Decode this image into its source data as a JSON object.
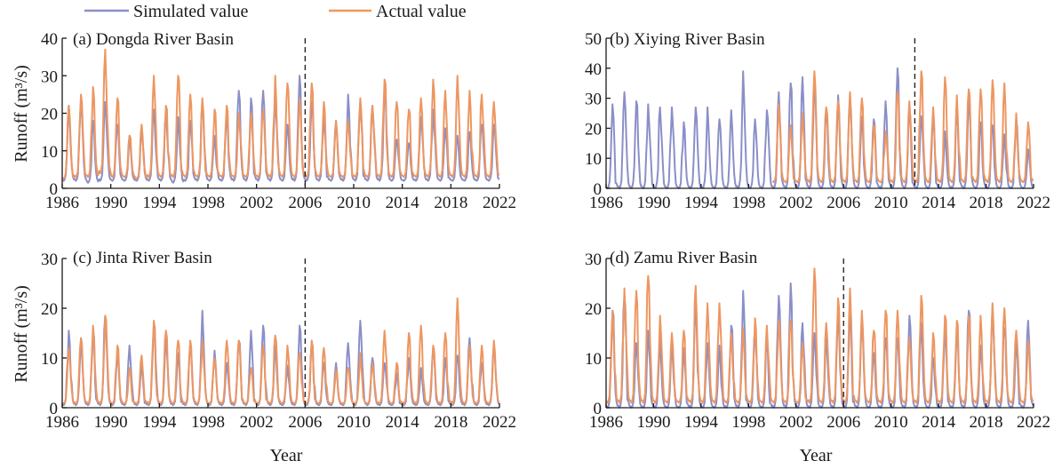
{
  "legend": {
    "simulated_label": "Simulated value",
    "actual_label": "Actual value"
  },
  "colors": {
    "simulated": "#8a8fc8",
    "actual": "#ee9660",
    "axis": "#1a1a1a",
    "divider": "#1a1a1a"
  },
  "axis_titles": {
    "y": "Runoff (m³/s)",
    "x": "Year"
  },
  "chart_data": [
    {
      "type": "line",
      "title": "(a) Dongda River Basin",
      "xlabel": "",
      "ylabel": "Runoff (m³/s)",
      "xlim": [
        1986,
        2022
      ],
      "ylim": [
        0,
        40
      ],
      "yticks": [
        0,
        10,
        20,
        30,
        40
      ],
      "xticks": [
        1986,
        1990,
        1994,
        1998,
        2002,
        2006,
        2010,
        2014,
        2018,
        2022
      ],
      "divider_year": 2006,
      "resolution": "monthly (annual peaks listed)",
      "years": [
        1986,
        1987,
        1988,
        1989,
        1990,
        1991,
        1992,
        1993,
        1994,
        1995,
        1996,
        1997,
        1998,
        1999,
        2000,
        2001,
        2002,
        2003,
        2004,
        2005,
        2006,
        2007,
        2008,
        2009,
        2010,
        2011,
        2012,
        2013,
        2014,
        2015,
        2016,
        2017,
        2018,
        2019,
        2020,
        2021
      ],
      "series": [
        {
          "name": "Simulated value",
          "annual_peak": [
            22,
            24,
            18,
            23,
            17,
            14,
            16,
            21,
            20,
            19,
            18,
            23,
            14,
            19,
            26,
            24,
            26,
            24,
            17,
            30,
            23,
            19,
            18,
            25,
            23,
            22,
            27,
            13,
            12,
            19,
            21,
            16,
            14,
            15,
            17,
            17
          ],
          "annual_min": [
            2,
            2,
            1.5,
            2,
            2,
            2,
            2,
            2,
            2,
            1.5,
            2,
            2,
            2,
            2,
            2,
            2,
            2,
            2,
            2,
            2,
            2,
            2,
            2,
            2,
            2,
            2,
            2,
            2,
            2,
            2,
            2,
            2,
            2,
            2,
            2,
            2
          ]
        },
        {
          "name": "Actual value",
          "annual_peak": [
            22,
            25,
            27,
            37,
            24,
            14,
            17,
            30,
            22,
            30,
            25,
            24,
            21,
            22,
            20,
            20,
            21,
            30,
            28,
            24,
            28,
            23,
            18,
            18,
            24,
            22,
            29,
            23,
            21,
            24,
            29,
            26,
            30,
            26,
            25,
            23
          ],
          "annual_min": [
            2.5,
            3,
            3,
            4,
            3,
            3,
            2.5,
            3,
            3,
            3,
            3,
            3,
            3,
            3,
            3,
            3,
            3,
            3,
            3,
            3,
            3,
            3,
            3,
            3,
            3,
            3,
            3,
            3,
            3,
            3,
            3,
            3,
            3,
            3,
            3,
            3
          ]
        }
      ]
    },
    {
      "type": "line",
      "title": "(b) Xiying River Basin",
      "xlabel": "",
      "ylabel": "",
      "xlim": [
        1986,
        2022
      ],
      "ylim": [
        0,
        50
      ],
      "yticks": [
        0,
        10,
        20,
        30,
        40,
        50
      ],
      "xticks": [
        1986,
        1990,
        1994,
        1998,
        2002,
        2006,
        2010,
        2014,
        2018,
        2022
      ],
      "divider_year": 2012,
      "resolution": "monthly (annual peaks listed)",
      "years": [
        1986,
        1987,
        1988,
        1989,
        1990,
        1991,
        1992,
        1993,
        1994,
        1995,
        1996,
        1997,
        1998,
        1999,
        2000,
        2001,
        2002,
        2003,
        2004,
        2005,
        2006,
        2007,
        2008,
        2009,
        2010,
        2011,
        2012,
        2013,
        2014,
        2015,
        2016,
        2017,
        2018,
        2019,
        2020,
        2021
      ],
      "series": [
        {
          "name": "Simulated value",
          "annual_peak": [
            28,
            32,
            29,
            28,
            27,
            27,
            22,
            27,
            27,
            23,
            26,
            39,
            23,
            26,
            32,
            35,
            37,
            37,
            25,
            31,
            30,
            24,
            23,
            29,
            40,
            26,
            24,
            22,
            19,
            26,
            29,
            22,
            21,
            18,
            22,
            13
          ],
          "annual_min": [
            0,
            0,
            0,
            0,
            0,
            0,
            0,
            0,
            0,
            0,
            0,
            0,
            0,
            0,
            0,
            0,
            0,
            0,
            0,
            0,
            0,
            0,
            0,
            0,
            0,
            0,
            0,
            0,
            0,
            0,
            0,
            0,
            0,
            0,
            0,
            0
          ]
        },
        {
          "name": "Actual value",
          "annual_peak": [
            null,
            null,
            null,
            null,
            null,
            null,
            null,
            null,
            null,
            null,
            null,
            null,
            null,
            null,
            28,
            21,
            25,
            39,
            27,
            29,
            32,
            30,
            21,
            19,
            32,
            29,
            39,
            27,
            37,
            31,
            33,
            33,
            36,
            35,
            25,
            22
          ],
          "annual_min": [
            null,
            null,
            null,
            null,
            null,
            null,
            null,
            null,
            null,
            null,
            null,
            null,
            null,
            null,
            2,
            2,
            2,
            2,
            2,
            2,
            2,
            2,
            2,
            2,
            2,
            2,
            2,
            2,
            2,
            2,
            2,
            2,
            2,
            2,
            2,
            2
          ]
        }
      ]
    },
    {
      "type": "line",
      "title": "(c) Jinta River Basin",
      "xlabel": "Year",
      "ylabel": "Runoff (m³/s)",
      "xlim": [
        1986,
        2022
      ],
      "ylim": [
        0,
        30
      ],
      "yticks": [
        0,
        10,
        20,
        30
      ],
      "xticks": [
        1986,
        1990,
        1994,
        1998,
        2002,
        2006,
        2010,
        2014,
        2018,
        2022
      ],
      "divider_year": 2006,
      "resolution": "monthly (annual peaks listed)",
      "years": [
        1986,
        1987,
        1988,
        1989,
        1990,
        1991,
        1992,
        1993,
        1994,
        1995,
        1996,
        1997,
        1998,
        1999,
        2000,
        2001,
        2002,
        2003,
        2004,
        2005,
        2006,
        2007,
        2008,
        2009,
        2010,
        2011,
        2012,
        2013,
        2014,
        2015,
        2016,
        2017,
        2018,
        2019,
        2020,
        2021
      ],
      "series": [
        {
          "name": "Simulated value",
          "annual_peak": [
            15.5,
            14,
            15,
            18.5,
            10,
            12.5,
            8.5,
            17,
            14,
            11,
            13,
            19.5,
            11.5,
            9,
            13.5,
            15.5,
            16.5,
            12.5,
            8.5,
            16.5,
            13,
            9,
            9,
            13,
            17.5,
            10,
            9,
            7,
            10,
            8,
            12,
            10,
            10.5,
            14,
            9,
            12.5
          ],
          "annual_min": [
            0.5,
            0.5,
            0.5,
            0.5,
            0.5,
            0.5,
            0.5,
            0.5,
            0.5,
            0.5,
            0.5,
            0.5,
            0.5,
            0.5,
            0.5,
            0.5,
            0.5,
            0.5,
            0.5,
            0.5,
            0.5,
            0.5,
            0.5,
            0.5,
            0.5,
            0.5,
            0.5,
            0.5,
            0.5,
            0.5,
            0.5,
            0.5,
            0.5,
            0.5,
            0.5,
            0.5
          ]
        },
        {
          "name": "Actual value",
          "annual_peak": [
            12,
            14,
            16.5,
            18.5,
            12.5,
            8,
            10.5,
            17.5,
            15.5,
            13.5,
            13.5,
            13.5,
            10,
            13.5,
            13.5,
            8,
            12.5,
            14.5,
            12.5,
            11,
            13.5,
            12,
            7.5,
            8,
            11,
            9,
            15.5,
            9,
            15,
            16.5,
            12.5,
            15,
            22,
            12.5,
            12.5,
            13.5
          ],
          "annual_min": [
            0.8,
            0.8,
            0.8,
            0.8,
            0.8,
            0.8,
            0.8,
            0.8,
            0.8,
            0.8,
            0.8,
            0.8,
            0.8,
            0.8,
            0.8,
            0.8,
            0.8,
            0.8,
            0.8,
            0.8,
            0.8,
            0.8,
            0.8,
            0.8,
            0.8,
            0.8,
            0.8,
            0.8,
            0.8,
            0.8,
            0.8,
            0.8,
            0.8,
            0.8,
            0.8,
            0.8
          ]
        }
      ]
    },
    {
      "type": "line",
      "title": "(d) Zamu River Basin",
      "xlabel": "Year",
      "ylabel": "",
      "xlim": [
        1986,
        2022
      ],
      "ylim": [
        0,
        30
      ],
      "yticks": [
        0,
        10,
        20,
        30
      ],
      "xticks": [
        1986,
        1990,
        1994,
        1998,
        2002,
        2006,
        2010,
        2014,
        2018,
        2022
      ],
      "divider_year": 2006,
      "resolution": "monthly (annual peaks listed)",
      "years": [
        1986,
        1987,
        1988,
        1989,
        1990,
        1991,
        1992,
        1993,
        1994,
        1995,
        1996,
        1997,
        1998,
        1999,
        2000,
        2001,
        2002,
        2003,
        2004,
        2005,
        2006,
        2007,
        2008,
        2009,
        2010,
        2011,
        2012,
        2013,
        2014,
        2015,
        2016,
        2017,
        2018,
        2019,
        2020,
        2021
      ],
      "series": [
        {
          "name": "Simulated value",
          "annual_peak": [
            19.5,
            22.5,
            13,
            15.5,
            14,
            12,
            12,
            21,
            13,
            12.5,
            16.5,
            23.5,
            15.5,
            13.5,
            22.5,
            25,
            17,
            15,
            14,
            18,
            20,
            17,
            11,
            14,
            14,
            18.5,
            17,
            10,
            16,
            16,
            19.5,
            12.5,
            20.5,
            16,
            13,
            17.5
          ],
          "annual_min": [
            0,
            0,
            0,
            0,
            0,
            0,
            0,
            0,
            0,
            0,
            0,
            0,
            0,
            0,
            0,
            0,
            0,
            0,
            0,
            0,
            0,
            0,
            0,
            0,
            0,
            0,
            0,
            0,
            0,
            0,
            0,
            0,
            0,
            0,
            0,
            0
          ]
        },
        {
          "name": "Actual value",
          "annual_peak": [
            19.5,
            24,
            23.5,
            26.5,
            18.5,
            15,
            15.5,
            24.5,
            21,
            21,
            15,
            16,
            18,
            16.5,
            17.5,
            17.5,
            13,
            28,
            17,
            22,
            24,
            19.5,
            15.5,
            19.5,
            19.5,
            14,
            22.5,
            15,
            18.5,
            17.5,
            18.5,
            18.5,
            21,
            20,
            15.5,
            13.5
          ],
          "annual_min": [
            1,
            1,
            1,
            1,
            1,
            1,
            1,
            1,
            1,
            1,
            1,
            1,
            1,
            1,
            1,
            1,
            1,
            1,
            1,
            1,
            1,
            1,
            1,
            1,
            1,
            1,
            1,
            1,
            1,
            1,
            1,
            1,
            1,
            1,
            1,
            1
          ]
        }
      ]
    }
  ]
}
